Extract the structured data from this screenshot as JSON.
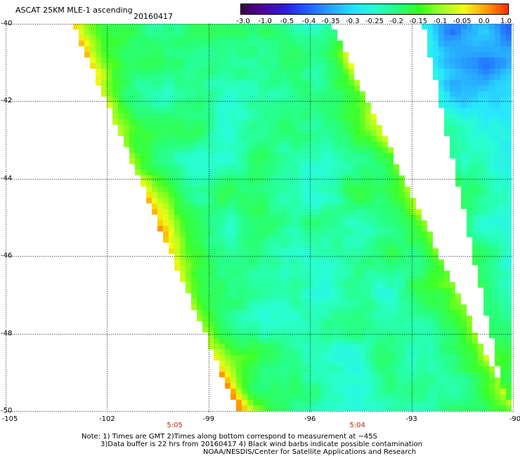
{
  "header": {
    "title": "ASCAT 25KM MLE-1 ascending",
    "date": "20160417"
  },
  "colorbar": {
    "labels": [
      "-3.0",
      "-1.0",
      "-0.5",
      "-0.4",
      "-0.35",
      "-0.3",
      "-0.25",
      "-0.2",
      "-0.15",
      "-0.1",
      "-0.05",
      "0.0",
      "1.0"
    ],
    "colors": [
      "#3a0044",
      "#5000a0",
      "#2a20d8",
      "#2060ff",
      "#2aa0ff",
      "#20e0ff",
      "#20ffd0",
      "#20ff80",
      "#30ff20",
      "#a0ff20",
      "#f0ff10",
      "#ffa000",
      "#ff3000"
    ]
  },
  "map": {
    "lat_labels": [
      "-40",
      "-42",
      "-44",
      "-46",
      "-48",
      "-50"
    ],
    "lat_values": [
      -40,
      -42,
      -44,
      -46,
      -48,
      -50
    ],
    "lon_labels": [
      "-105",
      "-102",
      "-99",
      "-96",
      "-93",
      "-90"
    ],
    "lon_values": [
      -105,
      -102,
      -99,
      -96,
      -93,
      -90
    ],
    "lon_range": [
      -105,
      -90
    ],
    "lat_range": [
      -40,
      -50
    ],
    "times": [
      "5:05",
      "5:04"
    ],
    "time_lons": [
      -100.0,
      -94.6
    ]
  },
  "notes": {
    "line1": "Note: 1) Times are GMT 2)Times along bottom correspond to measurement at ~45S",
    "line2": "3)Data buffer is 22 hrs from 20160417 4) Black wind barbs indicate possible contamination",
    "line3": "NOAA/NESDIS/Center for Satellite Applications and Research"
  }
}
